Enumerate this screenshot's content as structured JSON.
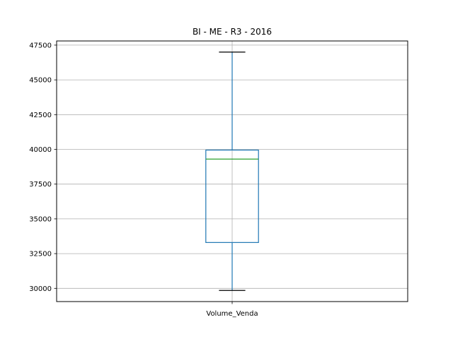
{
  "chart_data": {
    "type": "box",
    "title": "BI - ME - R3 - 2016",
    "xlabel": "",
    "ylabel": "",
    "categories": [
      "Volume_Venda"
    ],
    "series": [
      {
        "name": "Volume_Venda",
        "whisker_low": 29850,
        "q1": 33300,
        "median": 39300,
        "q3": 39950,
        "whisker_high": 47000
      }
    ],
    "ylim": [
      29050,
      47800
    ],
    "yticks": [
      30000,
      32500,
      35000,
      37500,
      40000,
      42500,
      45000,
      47500
    ],
    "ytick_labels": [
      "30000",
      "32500",
      "35000",
      "37500",
      "40000",
      "42500",
      "45000",
      "47500"
    ],
    "grid": true,
    "colors": {
      "box": "#1f77b4",
      "median": "#2ca02c",
      "grid": "#b0b0b0",
      "whisker": "#1f77b4",
      "cap": "#000000"
    }
  }
}
